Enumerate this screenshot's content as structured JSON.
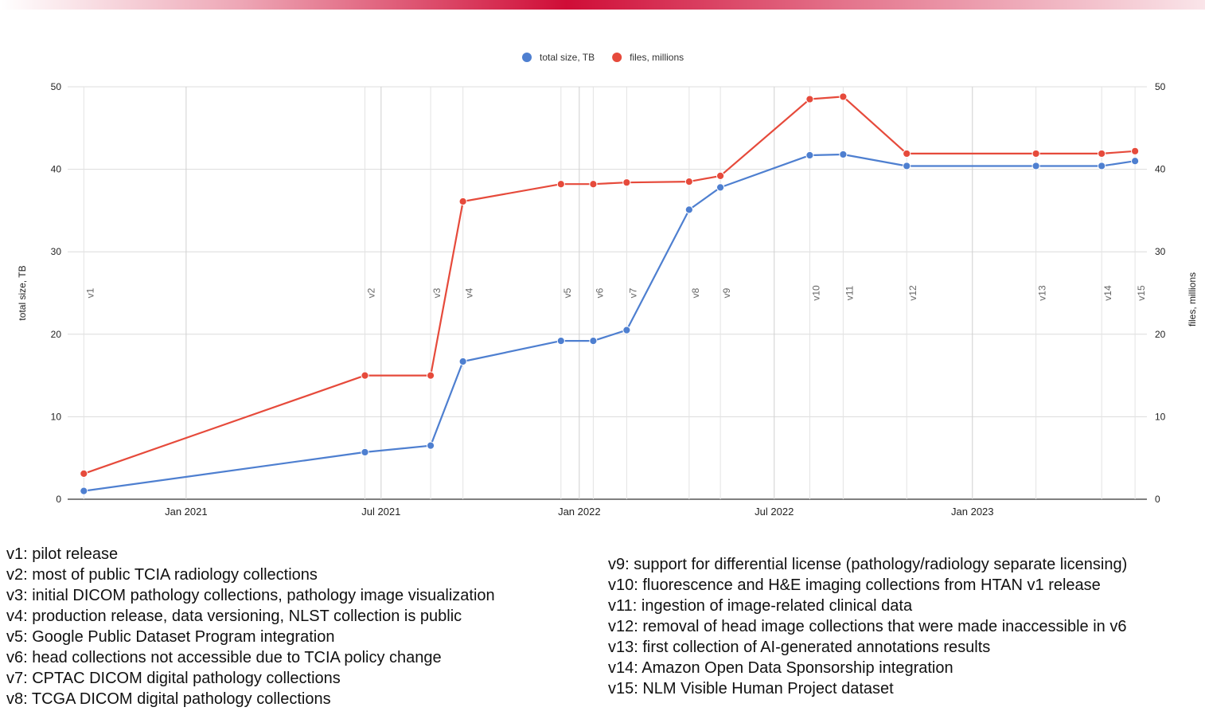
{
  "chart_data": {
    "type": "line",
    "legend_position": "top-center",
    "grid": true,
    "x_ticks": [
      "Jan 2021",
      "Jul 2021",
      "Jan 2022",
      "Jul 2022",
      "Jan 2023"
    ],
    "ylabel_left": "total size, TB",
    "ylabel_right": "files, millions",
    "ylim_left": [
      0,
      50
    ],
    "ylim_right": [
      0,
      50
    ],
    "y_ticks": [
      0,
      10,
      20,
      30,
      40,
      50
    ],
    "versions": [
      {
        "label": "v1",
        "date": "2020-09-28"
      },
      {
        "label": "v2",
        "date": "2021-06-16"
      },
      {
        "label": "v3",
        "date": "2021-08-16"
      },
      {
        "label": "v4",
        "date": "2021-09-15"
      },
      {
        "label": "v5",
        "date": "2021-12-15"
      },
      {
        "label": "v6",
        "date": "2022-01-14"
      },
      {
        "label": "v7",
        "date": "2022-02-14"
      },
      {
        "label": "v8",
        "date": "2022-04-13"
      },
      {
        "label": "v9",
        "date": "2022-05-12"
      },
      {
        "label": "v10",
        "date": "2022-08-03"
      },
      {
        "label": "v11",
        "date": "2022-09-03"
      },
      {
        "label": "v12",
        "date": "2022-11-01"
      },
      {
        "label": "v13",
        "date": "2023-03-01"
      },
      {
        "label": "v14",
        "date": "2023-05-01"
      },
      {
        "label": "v15",
        "date": "2023-06-01"
      }
    ],
    "series": [
      {
        "name": "total size, TB",
        "color": "#4e7fd0",
        "axis": "left",
        "values": [
          1.0,
          5.7,
          6.5,
          16.7,
          19.2,
          19.2,
          20.5,
          35.1,
          37.8,
          41.7,
          41.8,
          40.4,
          40.4,
          40.4,
          41.0
        ]
      },
      {
        "name": "files, millions",
        "color": "#e64a3b",
        "axis": "right",
        "values": [
          3.1,
          15.0,
          15.0,
          36.1,
          38.2,
          38.2,
          38.4,
          38.5,
          39.2,
          48.5,
          48.8,
          41.9,
          41.9,
          41.9,
          42.2
        ]
      }
    ]
  },
  "notes_left": [
    "v1: pilot release",
    "v2: most of public TCIA radiology collections",
    "v3: initial DICOM pathology collections, pathology image visualization",
    "v4: production release, data versioning, NLST collection is public",
    "v5: Google Public Dataset Program integration",
    "v6: head collections not accessible due to TCIA policy change",
    "v7: CPTAC DICOM digital pathology collections",
    "v8: TCGA DICOM digital pathology collections"
  ],
  "notes_right": [
    "v9: support for differential license (pathology/radiology separate licensing)",
    "v10: fluorescence and H&E imaging collections from HTAN v1 release",
    "v11: ingestion of image-related clinical data",
    "v12: removal of head image collections that were made inaccessible in v6",
    "v13: first collection of AI-generated annotations results",
    "v14: Amazon Open Data Sponsorship integration",
    "v15: NLM Visible Human Project dataset"
  ]
}
